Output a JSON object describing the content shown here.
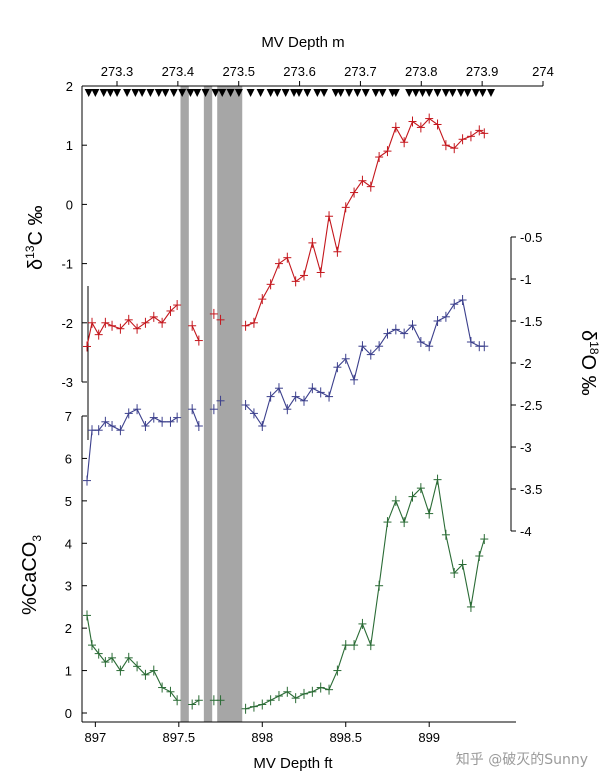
{
  "chart_data": {
    "type": "line",
    "top_axis": {
      "label": "MV Depth m",
      "ticks": [
        "273.3",
        "273.4",
        "273.5",
        "273.6",
        "273.7",
        "273.8",
        "273.9",
        "274"
      ],
      "tick_values": [
        273.3,
        273.4,
        273.5,
        273.6,
        273.7,
        273.8,
        273.9,
        274.0
      ]
    },
    "bottom_axis": {
      "label": "MV Depth ft",
      "ticks": [
        "897",
        "897.5",
        "898",
        "898.5",
        "899"
      ],
      "tick_values": [
        897,
        897.5,
        898,
        898.5,
        899
      ],
      "xlim": [
        896.92,
        899.52
      ]
    },
    "d13c_axis": {
      "label_main": "δ",
      "label_sup": "13",
      "label_rest": "C ‰",
      "ticks": [
        "2",
        "1",
        "0",
        "-1",
        "-2",
        "-3"
      ],
      "tick_values": [
        2,
        1,
        0,
        -1,
        -2,
        -3
      ],
      "ylim": [
        -3.2,
        2.0
      ]
    },
    "d18o_axis": {
      "label_main": "δ",
      "label_sup": "18",
      "label_rest": "O ‰",
      "ticks": [
        "-0.5",
        "-1",
        "-1.5",
        "-2",
        "-2.5",
        "-3",
        "-3.5",
        "-4"
      ],
      "tick_values": [
        -0.5,
        -1,
        -1.5,
        -2,
        -2.5,
        -3,
        -3.5,
        -4
      ],
      "ylim": [
        -4.0,
        -0.5
      ]
    },
    "caco3_axis": {
      "label_main": "%CaCO",
      "label_sub": "3",
      "ticks": [
        "7",
        "6",
        "5",
        "4",
        "3",
        "2",
        "1",
        "0"
      ],
      "tick_values": [
        7,
        6,
        5,
        4,
        3,
        2,
        1,
        0
      ],
      "ylim": [
        0,
        7
      ]
    },
    "gaps_ft": [
      [
        897.51,
        897.56
      ],
      [
        897.65,
        897.7
      ],
      [
        897.73,
        897.88
      ]
    ],
    "sample_markers_ft": [
      896.96,
      897.0,
      897.05,
      897.09,
      897.13,
      897.19,
      897.24,
      897.28,
      897.33,
      897.38,
      897.42,
      897.47,
      897.52,
      897.57,
      897.61,
      897.66,
      897.72,
      897.76,
      897.81,
      897.86,
      897.93,
      897.99,
      898.05,
      898.09,
      898.14,
      898.19,
      898.22,
      898.27,
      898.33,
      898.37,
      898.44,
      898.47,
      898.52,
      898.57,
      898.62,
      898.68,
      898.72,
      898.78,
      898.8,
      898.88,
      898.92,
      898.96,
      899.0,
      899.05,
      899.1,
      899.14,
      899.19,
      899.23,
      899.28,
      899.32,
      899.37
    ],
    "series": [
      {
        "name": "δ13C",
        "color": "#c4161c",
        "axis": "d13c",
        "x": [
          896.95,
          896.98,
          897.02,
          897.06,
          897.1,
          897.15,
          897.2,
          897.25,
          897.3,
          897.35,
          897.4,
          897.45,
          897.49,
          897.58,
          897.62,
          897.71,
          897.75,
          897.9,
          897.95,
          898.0,
          898.05,
          898.1,
          898.15,
          898.2,
          898.25,
          898.3,
          898.35,
          898.4,
          898.45,
          898.5,
          898.55,
          898.6,
          898.65,
          898.7,
          898.75,
          898.8,
          898.85,
          898.9,
          898.95,
          899.0,
          899.05,
          899.1,
          899.15,
          899.2,
          899.25,
          899.3,
          899.33
        ],
        "y": [
          -2.4,
          -2.0,
          -2.2,
          -2.0,
          -2.05,
          -2.1,
          -1.95,
          -2.1,
          -2.0,
          -1.9,
          -2.0,
          -1.8,
          -1.7,
          -2.05,
          -2.3,
          -1.85,
          -1.95,
          -2.05,
          -2.0,
          -1.6,
          -1.35,
          -1.0,
          -0.9,
          -1.3,
          -1.2,
          -0.65,
          -1.15,
          -0.2,
          -0.8,
          -0.05,
          0.2,
          0.4,
          0.3,
          0.8,
          0.9,
          1.3,
          1.05,
          1.4,
          1.3,
          1.45,
          1.35,
          1.0,
          0.95,
          1.1,
          1.15,
          1.25,
          1.2
        ]
      },
      {
        "name": "δ18O",
        "color": "#3b3f8c",
        "axis": "d18o",
        "x": [
          896.95,
          896.98,
          897.02,
          897.06,
          897.1,
          897.15,
          897.2,
          897.25,
          897.3,
          897.35,
          897.4,
          897.45,
          897.49,
          897.58,
          897.62,
          897.71,
          897.75,
          897.9,
          897.95,
          898.0,
          898.05,
          898.1,
          898.15,
          898.2,
          898.25,
          898.3,
          898.35,
          898.4,
          898.45,
          898.5,
          898.55,
          898.6,
          898.65,
          898.7,
          898.75,
          898.8,
          898.85,
          898.9,
          898.95,
          899.0,
          899.05,
          899.1,
          899.15,
          899.2,
          899.25,
          899.3,
          899.33
        ],
        "y": [
          -3.4,
          -2.8,
          -2.8,
          -2.7,
          -2.75,
          -2.8,
          -2.6,
          -2.55,
          -2.75,
          -2.65,
          -2.7,
          -2.7,
          -2.65,
          -2.55,
          -2.75,
          -2.55,
          -2.45,
          -2.5,
          -2.6,
          -2.75,
          -2.4,
          -2.3,
          -2.55,
          -2.4,
          -2.45,
          -2.3,
          -2.35,
          -2.4,
          -2.05,
          -1.95,
          -2.2,
          -1.8,
          -1.9,
          -1.8,
          -1.65,
          -1.6,
          -1.65,
          -1.55,
          -1.75,
          -1.8,
          -1.5,
          -1.45,
          -1.3,
          -1.25,
          -1.75,
          -1.8,
          -1.8
        ]
      },
      {
        "name": "%CaCO3",
        "color": "#2a6b35",
        "axis": "caco3",
        "x": [
          896.95,
          896.98,
          897.02,
          897.06,
          897.1,
          897.15,
          897.2,
          897.25,
          897.3,
          897.35,
          897.4,
          897.45,
          897.49,
          897.58,
          897.62,
          897.71,
          897.75,
          897.9,
          897.95,
          898.0,
          898.05,
          898.1,
          898.15,
          898.2,
          898.25,
          898.3,
          898.35,
          898.4,
          898.45,
          898.5,
          898.55,
          898.6,
          898.65,
          898.7,
          898.75,
          898.8,
          898.85,
          898.9,
          898.95,
          899.0,
          899.05,
          899.1,
          899.15,
          899.2,
          899.25,
          899.3,
          899.33
        ],
        "y": [
          2.3,
          1.6,
          1.4,
          1.2,
          1.3,
          1.0,
          1.3,
          1.1,
          0.9,
          1.0,
          0.6,
          0.5,
          0.3,
          0.2,
          0.3,
          0.3,
          0.3,
          0.1,
          0.15,
          0.2,
          0.3,
          0.4,
          0.5,
          0.35,
          0.45,
          0.5,
          0.6,
          0.55,
          1.0,
          1.6,
          1.6,
          2.1,
          1.6,
          3.0,
          4.5,
          5.0,
          4.5,
          5.1,
          5.3,
          4.7,
          5.5,
          4.2,
          3.3,
          3.5,
          2.5,
          3.7,
          4.1
        ]
      }
    ]
  },
  "watermark": "知乎 @破灭的Sunny"
}
